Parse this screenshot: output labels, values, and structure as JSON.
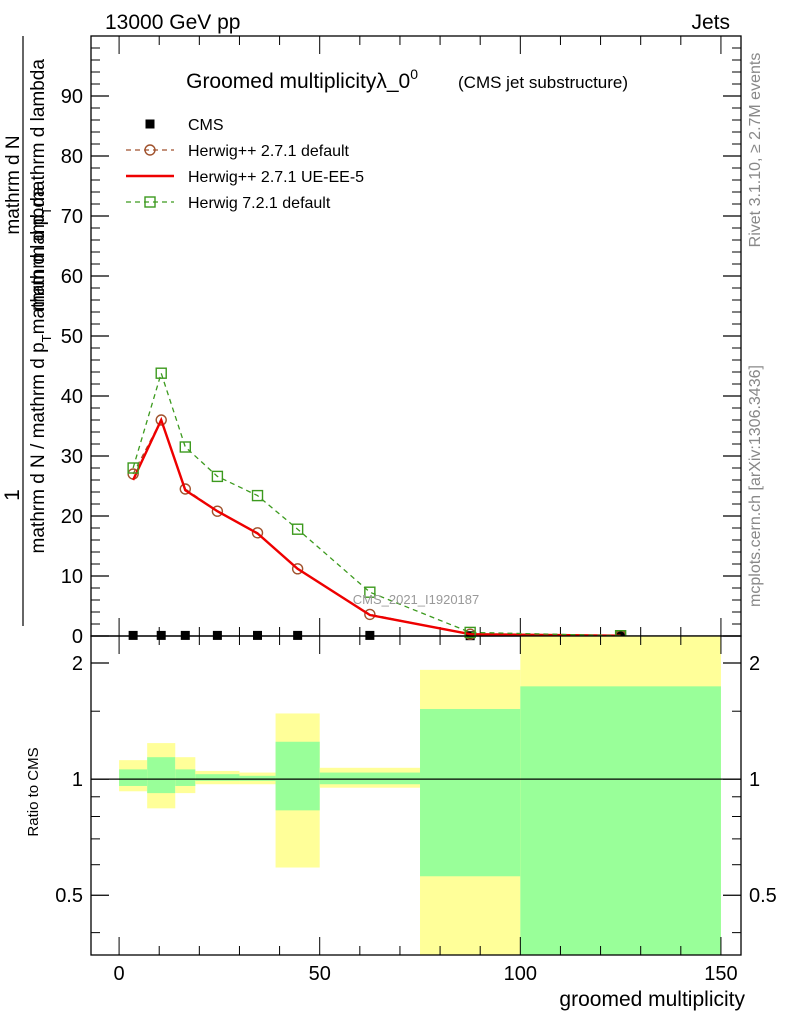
{
  "header": {
    "left": "13000 GeV pp",
    "right": "Jets"
  },
  "side_labels": {
    "rivet": "Rivet 3.1.10, ≥ 2.7M events",
    "mcplots": "mcplots.cern.ch [arXiv:1306.3436]"
  },
  "watermark": "CMS_2021_I1920187",
  "chart_data": [
    {
      "type": "line",
      "title": "Groomed multiplicityλ_0",
      "title_superscript": "0",
      "subtitle": "(CMS jet substructure)",
      "ylabel": {
        "numerator": "1",
        "denominator_1": "mathrm d N / mathrm d p",
        "denominator_sub": "T",
        "denominator_2": "mathrm d lambda",
        "frac_numerator": "mathrm d",
        "frac_numerator_2": "N",
        "frac_denominator_1": "mathrm d p",
        "frac_denominator_sub": "T",
        "frac_denominator_2": "mathrm d lambda"
      },
      "xlim": [
        -7,
        155
      ],
      "ylim": [
        0,
        100
      ],
      "yticks": [
        0,
        10,
        20,
        30,
        40,
        50,
        60,
        70,
        80,
        90
      ],
      "ytick_labels": [
        "0",
        "10",
        "20",
        "30",
        "40",
        "50",
        "60",
        "70",
        "80",
        "90"
      ],
      "legend_position": "top-left",
      "series": [
        {
          "name": "CMS",
          "style": "marker-square",
          "color": "#000000",
          "x": [
            3.5,
            10.5,
            16.5,
            24.5,
            34.5,
            44.5,
            62.5,
            87.5,
            125
          ],
          "y": [
            0.1,
            0.1,
            0.1,
            0.1,
            0.1,
            0.1,
            0.1,
            0.05,
            0.02
          ]
        },
        {
          "name": "Herwig++ 2.7.1 default",
          "style": "dashed-circle",
          "color": "#a0522d",
          "x": [
            3.5,
            10.5,
            16.5,
            24.5,
            34.5,
            44.5,
            62.5,
            87.5,
            125
          ],
          "y": [
            27.0,
            36.0,
            24.5,
            20.8,
            17.2,
            11.2,
            3.6,
            0.3,
            0.05
          ]
        },
        {
          "name": "Herwig++ 2.7.1 UE-EE-5",
          "style": "solid",
          "color": "#ee0000",
          "x": [
            3.5,
            10.5,
            16.5,
            24.5,
            34.5,
            44.5,
            62.5,
            87.5,
            125
          ],
          "y": [
            26.0,
            36.0,
            24.3,
            20.8,
            17.1,
            11.2,
            3.5,
            0.3,
            0.05
          ]
        },
        {
          "name": "Herwig 7.2.1 default",
          "style": "dashed-square",
          "color": "#3c9a1e",
          "x": [
            3.5,
            10.5,
            16.5,
            24.5,
            34.5,
            44.5,
            62.5,
            87.5,
            125
          ],
          "y": [
            28.0,
            43.8,
            31.5,
            26.6,
            23.4,
            17.8,
            7.3,
            0.6,
            0.05
          ]
        }
      ]
    },
    {
      "type": "area",
      "ylabel": "Ratio to CMS",
      "xlabel": "groomed multiplicity",
      "xlim": [
        -7,
        155
      ],
      "ylim": [
        0.35,
        2.35
      ],
      "log_y": true,
      "xticks": [
        0,
        50,
        100,
        150
      ],
      "xtick_labels": [
        "0",
        "50",
        "100",
        "150"
      ],
      "yticks": [
        0.5,
        1,
        2
      ],
      "ytick_labels": [
        "0.5",
        "1",
        "2"
      ],
      "reference_line": 1,
      "bands": [
        {
          "x0": 0,
          "x1": 7,
          "yellow": [
            0.93,
            1.12
          ],
          "green": [
            0.96,
            1.06
          ]
        },
        {
          "x0": 7,
          "x1": 14,
          "yellow": [
            0.84,
            1.24
          ],
          "green": [
            0.92,
            1.14
          ]
        },
        {
          "x0": 14,
          "x1": 19,
          "yellow": [
            0.92,
            1.14
          ],
          "green": [
            0.96,
            1.06
          ]
        },
        {
          "x0": 19,
          "x1": 30,
          "yellow": [
            0.97,
            1.05
          ],
          "green": [
            0.99,
            1.03
          ]
        },
        {
          "x0": 30,
          "x1": 39,
          "yellow": [
            0.97,
            1.04
          ],
          "green": [
            0.99,
            1.02
          ]
        },
        {
          "x0": 39,
          "x1": 50,
          "yellow": [
            0.59,
            1.48
          ],
          "green": [
            0.83,
            1.25
          ]
        },
        {
          "x0": 50,
          "x1": 75,
          "yellow": [
            0.95,
            1.07
          ],
          "green": [
            0.97,
            1.04
          ]
        },
        {
          "x0": 75,
          "x1": 100,
          "yellow": [
            0.35,
            1.92
          ],
          "green": [
            0.56,
            1.52
          ]
        },
        {
          "x0": 100,
          "x1": 150,
          "yellow": [
            0.35,
            2.35
          ],
          "green": [
            0.35,
            1.74
          ]
        }
      ]
    }
  ]
}
